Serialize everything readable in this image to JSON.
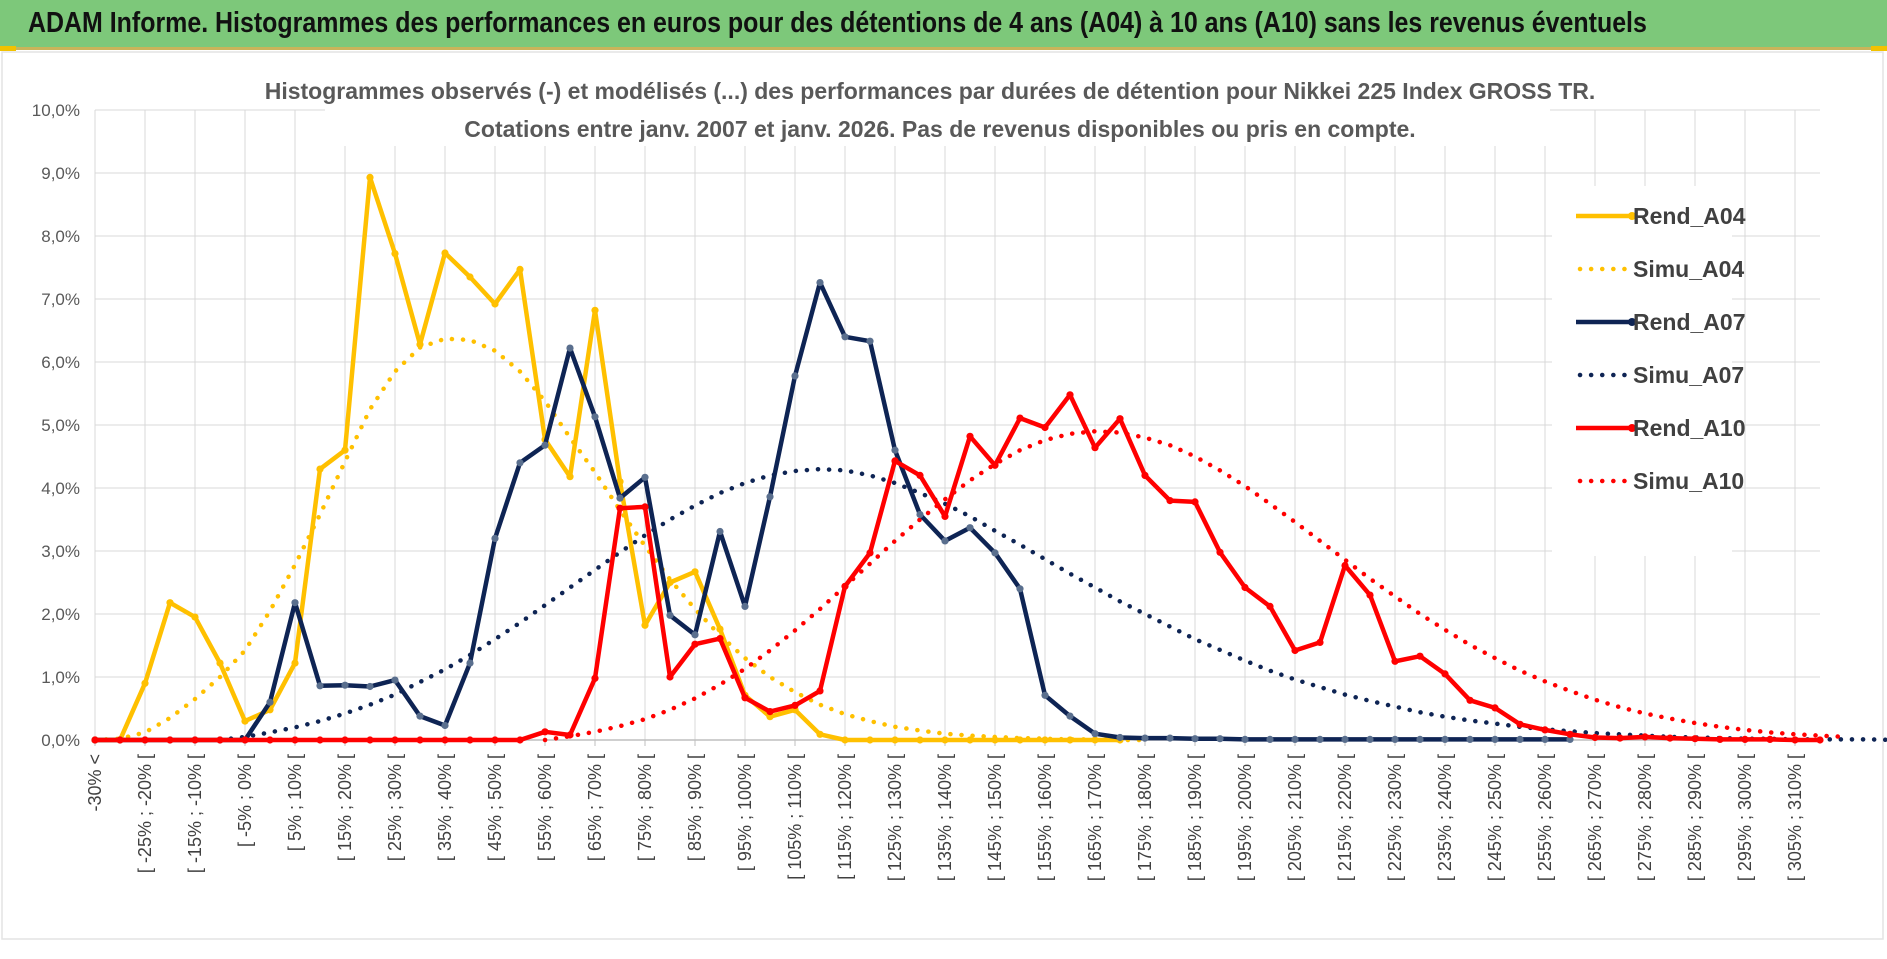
{
  "banner": {
    "title": "ADAM Informe. Histogrammes des performances en euros pour des détentions de 4 ans (A04) à 10 ans (A10) sans les revenus éventuels"
  },
  "colors": {
    "banner": "#7dc87a",
    "a04": "#ffc000",
    "a07": "#0e2454",
    "a10": "#ff0000",
    "grid": "#d9d9d9"
  },
  "chart_data": {
    "type": "line",
    "title_line1": "Histogrammes observés (-) et modélisés (...) des performances par durées de détention pour Nikkei 225 Index GROSS TR.",
    "title_line2": "Cotations entre janv. 2007 et janv. 2026. Pas de revenus disponibles ou pris en compte.",
    "ylim": [
      0,
      10
    ],
    "y_ticks": [
      "0,0%",
      "1,0%",
      "2,0%",
      "3,0%",
      "4,0%",
      "5,0%",
      "6,0%",
      "7,0%",
      "8,0%",
      "9,0%",
      "10,0%"
    ],
    "x_tick_labels": [
      "-30% <",
      "[ -25% ; -20% [",
      "[ -15% ; -10% [",
      "[ -5% ; 0% [",
      "[ 5% ; 10% [",
      "[ 15% ; 20% [",
      "[ 25% ; 30% [",
      "[ 35% ; 40% [",
      "[ 45% ; 50% [",
      "[ 55% ; 60% [",
      "[ 65% ; 70% [",
      "[ 75% ; 80% [",
      "[ 85% ; 90% [",
      "[ 95% ; 100% [",
      "[ 105% ; 110% [",
      "[ 115% ; 120% [",
      "[ 125% ; 130% [",
      "[ 135% ; 140% [",
      "[ 145% ; 150% [",
      "[ 155% ; 160% [",
      "[ 165% ; 170% [",
      "[ 175% ; 180% [",
      "[ 185% ; 190% [",
      "[ 195% ; 200% [",
      "[ 205% ; 210% [",
      "[ 215% ; 220% [",
      "[ 225% ; 230% [",
      "[ 235% ; 240% [",
      "[ 245% ; 250% [",
      "[ 255% ; 260% [",
      "[ 265% ; 270% [",
      "[ 275% ; 280% [",
      "[ 285% ; 290% [",
      "[ 295% ; 300% [",
      "[ 305% ; 310% ["
    ],
    "legend_position": "right",
    "series": [
      {
        "name": "Rend_A04",
        "style": "solid",
        "color": "#ffc000",
        "start": 0,
        "values": [
          0,
          0,
          0.9,
          2.18,
          1.95,
          1.22,
          0.3,
          0.48,
          1.22,
          4.3,
          4.6,
          8.93,
          7.72,
          6.28,
          7.73,
          7.35,
          6.92,
          7.47,
          4.77,
          4.18,
          6.82,
          4.1,
          1.82,
          2.5,
          2.67,
          1.76,
          0.71,
          0.37,
          0.48,
          0.09,
          0,
          0,
          0,
          0,
          0,
          0,
          0,
          0,
          0,
          0,
          0,
          0
        ]
      },
      {
        "name": "Simu_A04",
        "style": "dotted",
        "color": "#ffc000",
        "start": 0,
        "values": [
          0,
          0.02,
          0.12,
          0.35,
          0.65,
          1.0,
          1.42,
          2.05,
          2.78,
          3.58,
          4.42,
          5.25,
          5.85,
          6.23,
          6.37,
          6.35,
          6.18,
          5.85,
          5.38,
          4.8,
          4.25,
          3.65,
          3.08,
          2.55,
          2.08,
          1.66,
          1.3,
          1.0,
          0.76,
          0.56,
          0.41,
          0.3,
          0.21,
          0.15,
          0.1,
          0.07,
          0.05,
          0.03,
          0.02,
          0.01,
          0.01,
          0.0,
          0.0
        ]
      },
      {
        "name": "Rend_A07",
        "style": "solid",
        "color": "#0e2454",
        "start": 0,
        "values": [
          0,
          0,
          0,
          0,
          0,
          0,
          0,
          0.6,
          2.18,
          0.86,
          0.87,
          0.85,
          0.95,
          0.38,
          0.23,
          1.22,
          3.2,
          4.4,
          4.68,
          6.22,
          5.13,
          3.84,
          4.17,
          1.98,
          1.67,
          3.31,
          2.12,
          3.86,
          5.78,
          7.26,
          6.4,
          6.33,
          4.6,
          3.58,
          3.16,
          3.37,
          2.97,
          2.4,
          0.71,
          0.38,
          0.1,
          0.04,
          0.03,
          0.03,
          0.02,
          0.02,
          0.01,
          0.01,
          0.01,
          0.01,
          0.01,
          0.01,
          0.01,
          0.01,
          0.01,
          0.01,
          0.01,
          0.01,
          0.01,
          0.01
        ]
      },
      {
        "name": "Simu_A07",
        "style": "dotted",
        "color": "#0e2454",
        "start": 5,
        "values": [
          0,
          0.05,
          0.12,
          0.2,
          0.3,
          0.42,
          0.56,
          0.72,
          0.92,
          1.12,
          1.35,
          1.6,
          1.86,
          2.14,
          2.42,
          2.7,
          2.98,
          3.25,
          3.5,
          3.72,
          3.92,
          4.08,
          4.2,
          4.27,
          4.3,
          4.28,
          4.2,
          4.08,
          3.92,
          3.75,
          3.55,
          3.32,
          3.1,
          2.87,
          2.64,
          2.42,
          2.2,
          2.0,
          1.8,
          1.6,
          1.43,
          1.26,
          1.1,
          0.96,
          0.84,
          0.72,
          0.62,
          0.53,
          0.44,
          0.37,
          0.31,
          0.26,
          0.21,
          0.17,
          0.14,
          0.11,
          0.09,
          0.07,
          0.05,
          0.04,
          0.03,
          0.02,
          0.02,
          0.01,
          0.01,
          0.01,
          0.01,
          0.0,
          0.0
        ]
      },
      {
        "name": "Rend_A10",
        "style": "solid",
        "color": "#ff0000",
        "start": 0,
        "values": [
          0,
          0,
          0,
          0,
          0,
          0,
          0,
          0,
          0,
          0,
          0,
          0,
          0,
          0,
          0,
          0,
          0,
          0,
          0.13,
          0.08,
          0.98,
          3.68,
          3.7,
          1.0,
          1.52,
          1.61,
          0.67,
          0.45,
          0.55,
          0.78,
          2.44,
          2.97,
          4.43,
          4.2,
          3.55,
          4.82,
          4.36,
          5.11,
          4.96,
          5.48,
          4.64,
          5.1,
          4.2,
          3.8,
          3.78,
          2.98,
          2.42,
          2.12,
          1.42,
          1.55,
          2.77,
          2.3,
          1.25,
          1.33,
          1.05,
          0.63,
          0.51,
          0.25,
          0.16,
          0.09,
          0.04,
          0.03,
          0.05,
          0.03,
          0.02,
          0.01,
          0.01,
          0.01,
          0.0,
          0.0
        ]
      },
      {
        "name": "Simu_A10",
        "style": "dotted",
        "color": "#ff0000",
        "start": 18,
        "values": [
          0,
          0.06,
          0.13,
          0.22,
          0.33,
          0.48,
          0.66,
          0.88,
          1.13,
          1.42,
          1.74,
          2.08,
          2.44,
          2.8,
          3.16,
          3.5,
          3.82,
          4.12,
          4.38,
          4.6,
          4.76,
          4.86,
          4.9,
          4.88,
          4.8,
          4.68,
          4.5,
          4.28,
          4.03,
          3.75,
          3.46,
          3.16,
          2.86,
          2.56,
          2.28,
          2.0,
          1.75,
          1.51,
          1.3,
          1.1,
          0.93,
          0.78,
          0.64,
          0.52,
          0.42,
          0.34,
          0.27,
          0.21,
          0.16,
          0.12,
          0.09,
          0.07,
          0.05
        ]
      }
    ]
  }
}
